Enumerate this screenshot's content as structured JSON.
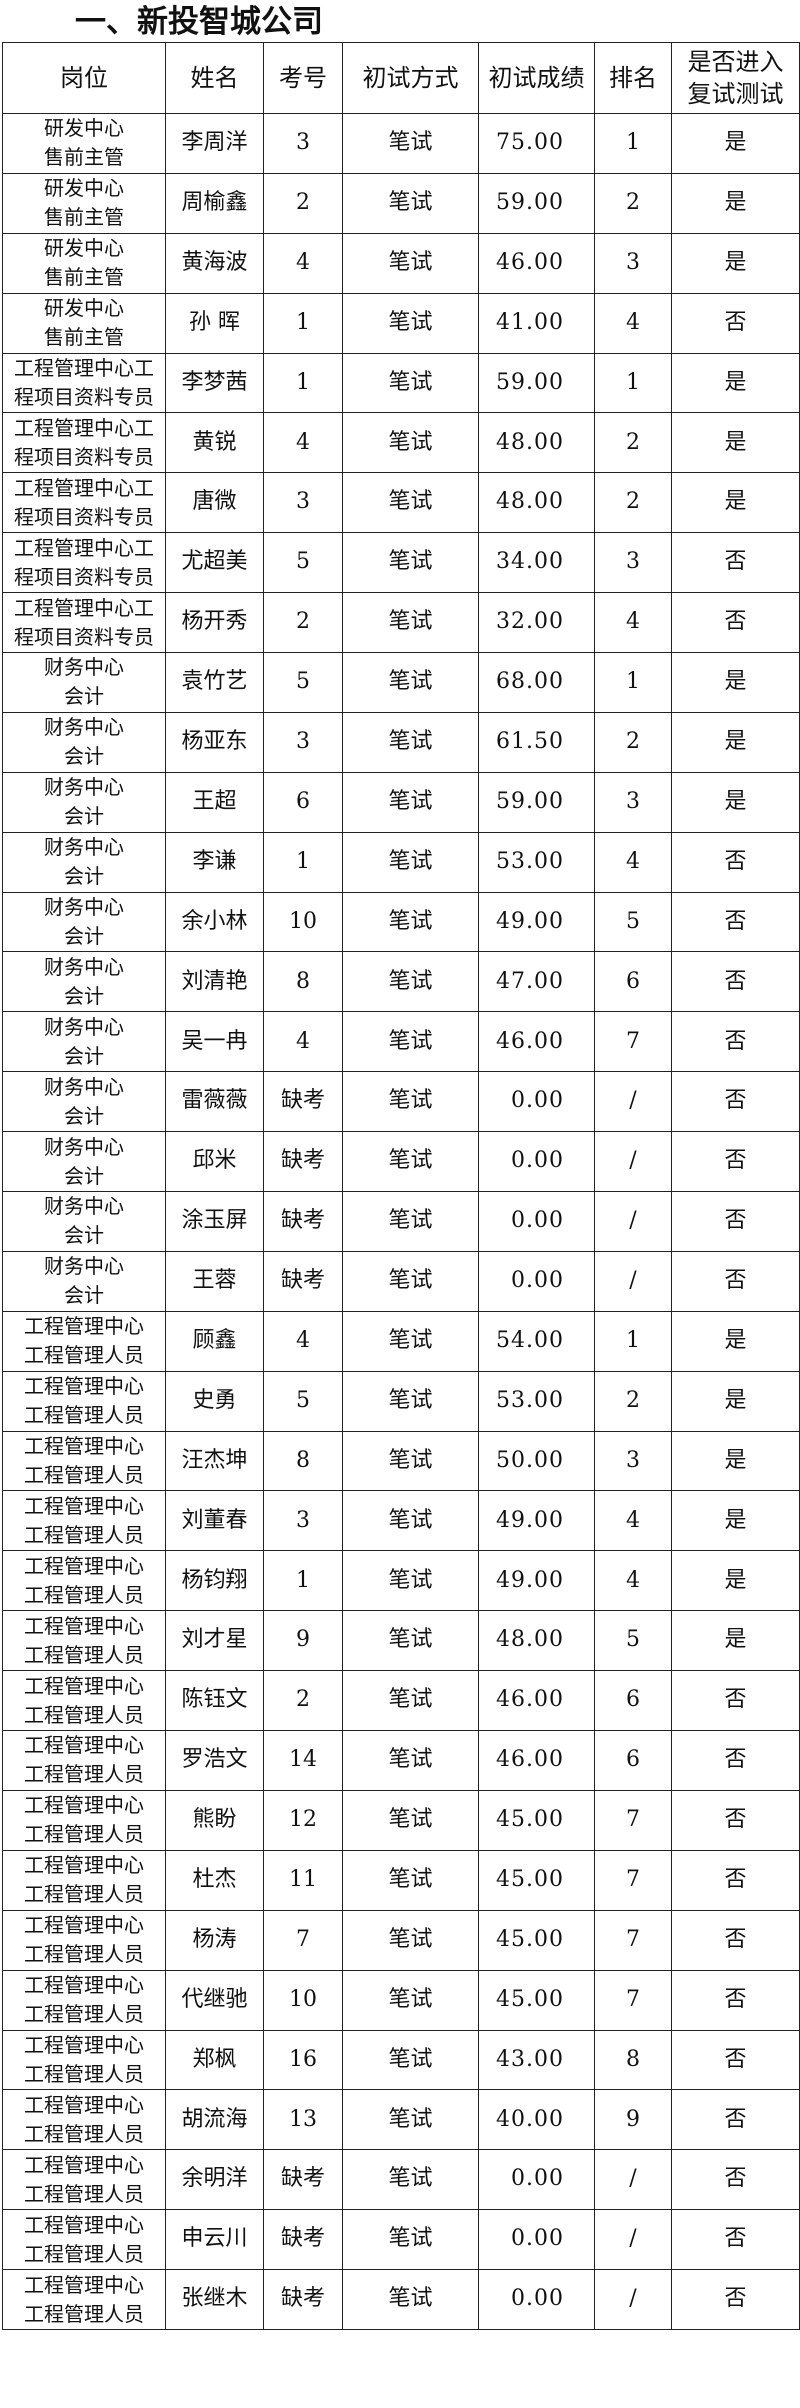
{
  "title": "一、新投智城公司",
  "headers": [
    "岗位",
    "姓名",
    "考号",
    "初试方式",
    "初试成绩",
    "排名",
    "是否进入复试测试"
  ],
  "header_last_lines": [
    "是否进入",
    "复试测试"
  ],
  "rows": [
    {
      "pos": [
        "研发中心",
        "售前主管"
      ],
      "name": "李周洋",
      "no": "3",
      "mode": "笔试",
      "score": "75.00",
      "rank": "1",
      "pass": "是"
    },
    {
      "pos": [
        "研发中心",
        "售前主管"
      ],
      "name": "周榆鑫",
      "no": "2",
      "mode": "笔试",
      "score": "59.00",
      "rank": "2",
      "pass": "是"
    },
    {
      "pos": [
        "研发中心",
        "售前主管"
      ],
      "name": "黄海波",
      "no": "4",
      "mode": "笔试",
      "score": "46.00",
      "rank": "3",
      "pass": "是"
    },
    {
      "pos": [
        "研发中心",
        "售前主管"
      ],
      "name": "孙 晖",
      "no": "1",
      "mode": "笔试",
      "score": "41.00",
      "rank": "4",
      "pass": "否"
    },
    {
      "pos": [
        "工程管理中心工",
        "程项目资料专员"
      ],
      "name": "李梦茜",
      "no": "1",
      "mode": "笔试",
      "score": "59.00",
      "rank": "1",
      "pass": "是"
    },
    {
      "pos": [
        "工程管理中心工",
        "程项目资料专员"
      ],
      "name": "黄锐",
      "no": "4",
      "mode": "笔试",
      "score": "48.00",
      "rank": "2",
      "pass": "是"
    },
    {
      "pos": [
        "工程管理中心工",
        "程项目资料专员"
      ],
      "name": "唐微",
      "no": "3",
      "mode": "笔试",
      "score": "48.00",
      "rank": "2",
      "pass": "是"
    },
    {
      "pos": [
        "工程管理中心工",
        "程项目资料专员"
      ],
      "name": "尤超美",
      "no": "5",
      "mode": "笔试",
      "score": "34.00",
      "rank": "3",
      "pass": "否"
    },
    {
      "pos": [
        "工程管理中心工",
        "程项目资料专员"
      ],
      "name": "杨开秀",
      "no": "2",
      "mode": "笔试",
      "score": "32.00",
      "rank": "4",
      "pass": "否"
    },
    {
      "pos": [
        "财务中心",
        "会计"
      ],
      "name": "袁竹艺",
      "no": "5",
      "mode": "笔试",
      "score": "68.00",
      "rank": "1",
      "pass": "是"
    },
    {
      "pos": [
        "财务中心",
        "会计"
      ],
      "name": "杨亚东",
      "no": "3",
      "mode": "笔试",
      "score": "61.50",
      "rank": "2",
      "pass": "是"
    },
    {
      "pos": [
        "财务中心",
        "会计"
      ],
      "name": "王超",
      "no": "6",
      "mode": "笔试",
      "score": "59.00",
      "rank": "3",
      "pass": "是"
    },
    {
      "pos": [
        "财务中心",
        "会计"
      ],
      "name": "李谦",
      "no": "1",
      "mode": "笔试",
      "score": "53.00",
      "rank": "4",
      "pass": "否"
    },
    {
      "pos": [
        "财务中心",
        "会计"
      ],
      "name": "余小林",
      "no": "10",
      "mode": "笔试",
      "score": "49.00",
      "rank": "5",
      "pass": "否"
    },
    {
      "pos": [
        "财务中心",
        "会计"
      ],
      "name": "刘清艳",
      "no": "8",
      "mode": "笔试",
      "score": "47.00",
      "rank": "6",
      "pass": "否"
    },
    {
      "pos": [
        "财务中心",
        "会计"
      ],
      "name": "吴一冉",
      "no": "4",
      "mode": "笔试",
      "score": "46.00",
      "rank": "7",
      "pass": "否"
    },
    {
      "pos": [
        "财务中心",
        "会计"
      ],
      "name": "雷薇薇",
      "no": "缺考",
      "mode": "笔试",
      "score": "0.00",
      "rank": "/",
      "pass": "否"
    },
    {
      "pos": [
        "财务中心",
        "会计"
      ],
      "name": "邱米",
      "no": "缺考",
      "mode": "笔试",
      "score": "0.00",
      "rank": "/",
      "pass": "否"
    },
    {
      "pos": [
        "财务中心",
        "会计"
      ],
      "name": "涂玉屏",
      "no": "缺考",
      "mode": "笔试",
      "score": "0.00",
      "rank": "/",
      "pass": "否"
    },
    {
      "pos": [
        "财务中心",
        "会计"
      ],
      "name": "王蓉",
      "no": "缺考",
      "mode": "笔试",
      "score": "0.00",
      "rank": "/",
      "pass": "否"
    },
    {
      "pos": [
        "工程管理中心",
        "工程管理人员"
      ],
      "name": "顾鑫",
      "no": "4",
      "mode": "笔试",
      "score": "54.00",
      "rank": "1",
      "pass": "是"
    },
    {
      "pos": [
        "工程管理中心",
        "工程管理人员"
      ],
      "name": "史勇",
      "no": "5",
      "mode": "笔试",
      "score": "53.00",
      "rank": "2",
      "pass": "是"
    },
    {
      "pos": [
        "工程管理中心",
        "工程管理人员"
      ],
      "name": "汪杰坤",
      "no": "8",
      "mode": "笔试",
      "score": "50.00",
      "rank": "3",
      "pass": "是"
    },
    {
      "pos": [
        "工程管理中心",
        "工程管理人员"
      ],
      "name": "刘董春",
      "no": "3",
      "mode": "笔试",
      "score": "49.00",
      "rank": "4",
      "pass": "是"
    },
    {
      "pos": [
        "工程管理中心",
        "工程管理人员"
      ],
      "name": "杨钧翔",
      "no": "1",
      "mode": "笔试",
      "score": "49.00",
      "rank": "4",
      "pass": "是"
    },
    {
      "pos": [
        "工程管理中心",
        "工程管理人员"
      ],
      "name": "刘才星",
      "no": "9",
      "mode": "笔试",
      "score": "48.00",
      "rank": "5",
      "pass": "是"
    },
    {
      "pos": [
        "工程管理中心",
        "工程管理人员"
      ],
      "name": "陈钰文",
      "no": "2",
      "mode": "笔试",
      "score": "46.00",
      "rank": "6",
      "pass": "否"
    },
    {
      "pos": [
        "工程管理中心",
        "工程管理人员"
      ],
      "name": "罗浩文",
      "no": "14",
      "mode": "笔试",
      "score": "46.00",
      "rank": "6",
      "pass": "否"
    },
    {
      "pos": [
        "工程管理中心",
        "工程管理人员"
      ],
      "name": "熊盼",
      "no": "12",
      "mode": "笔试",
      "score": "45.00",
      "rank": "7",
      "pass": "否"
    },
    {
      "pos": [
        "工程管理中心",
        "工程管理人员"
      ],
      "name": "杜杰",
      "no": "11",
      "mode": "笔试",
      "score": "45.00",
      "rank": "7",
      "pass": "否"
    },
    {
      "pos": [
        "工程管理中心",
        "工程管理人员"
      ],
      "name": "杨涛",
      "no": "7",
      "mode": "笔试",
      "score": "45.00",
      "rank": "7",
      "pass": "否"
    },
    {
      "pos": [
        "工程管理中心",
        "工程管理人员"
      ],
      "name": "代继驰",
      "no": "10",
      "mode": "笔试",
      "score": "45.00",
      "rank": "7",
      "pass": "否"
    },
    {
      "pos": [
        "工程管理中心",
        "工程管理人员"
      ],
      "name": "郑枫",
      "no": "16",
      "mode": "笔试",
      "score": "43.00",
      "rank": "8",
      "pass": "否"
    },
    {
      "pos": [
        "工程管理中心",
        "工程管理人员"
      ],
      "name": "胡流海",
      "no": "13",
      "mode": "笔试",
      "score": "40.00",
      "rank": "9",
      "pass": "否"
    },
    {
      "pos": [
        "工程管理中心",
        "工程管理人员"
      ],
      "name": "余明洋",
      "no": "缺考",
      "mode": "笔试",
      "score": "0.00",
      "rank": "/",
      "pass": "否"
    },
    {
      "pos": [
        "工程管理中心",
        "工程管理人员"
      ],
      "name": "申云川",
      "no": "缺考",
      "mode": "笔试",
      "score": "0.00",
      "rank": "/",
      "pass": "否"
    },
    {
      "pos": [
        "工程管理中心",
        "工程管理人员"
      ],
      "name": "张继木",
      "no": "缺考",
      "mode": "笔试",
      "score": "0.00",
      "rank": "/",
      "pass": "否"
    }
  ]
}
